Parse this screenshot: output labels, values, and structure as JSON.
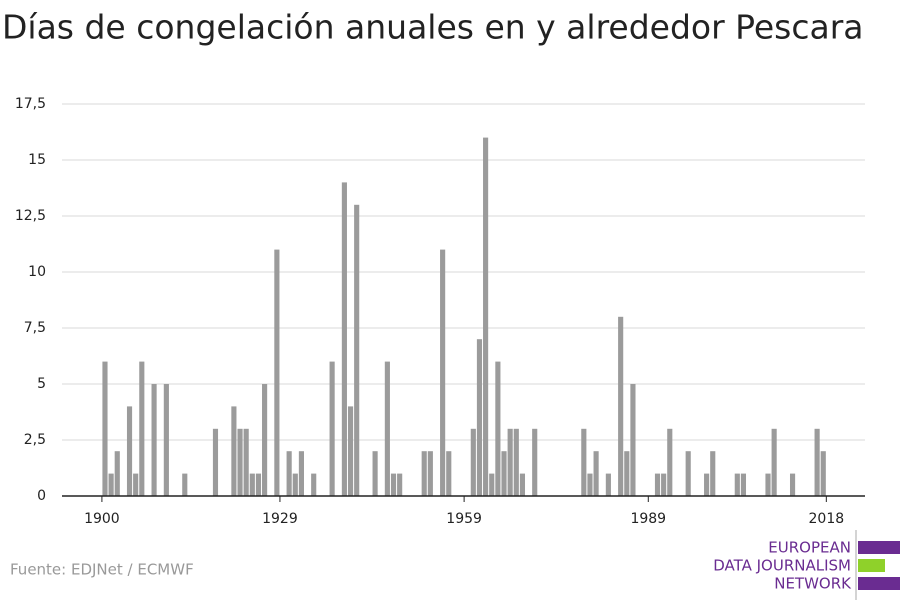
{
  "chart_data": {
    "type": "bar",
    "title": "Días de congelación anuales en y alrededor Pescara",
    "source": "Fuente: EDJNet / ECMWF",
    "logo": [
      "EUROPEAN",
      "DATA JOURNALISM",
      "NETWORK"
    ],
    "color": "#9b9b9b",
    "x": [
      1900,
      1901,
      1902,
      1904,
      1905,
      1906,
      1908,
      1910,
      1913,
      1918,
      1921,
      1922,
      1923,
      1924,
      1925,
      1926,
      1928,
      1930,
      1931,
      1932,
      1934,
      1937,
      1939,
      1940,
      1941,
      1944,
      1946,
      1947,
      1948,
      1952,
      1953,
      1955,
      1956,
      1960,
      1961,
      1962,
      1963,
      1964,
      1965,
      1966,
      1967,
      1968,
      1970,
      1978,
      1979,
      1980,
      1982,
      1984,
      1985,
      1986,
      1990,
      1991,
      1992,
      1995,
      1998,
      1999,
      2003,
      2004,
      2008,
      2009,
      2012,
      2016,
      2017
    ],
    "values": [
      6,
      1,
      2,
      4,
      1,
      6,
      5,
      5,
      1,
      3,
      4,
      3,
      3,
      1,
      1,
      5,
      11,
      2,
      1,
      2,
      1,
      6,
      14,
      4,
      13,
      2,
      6,
      1,
      1,
      2,
      2,
      11,
      2,
      3,
      7,
      16,
      1,
      6,
      2,
      3,
      3,
      1,
      3,
      3,
      1,
      2,
      1,
      8,
      2,
      5,
      1,
      1,
      3,
      2,
      1,
      2,
      1,
      1,
      1,
      3,
      1,
      3,
      2
    ],
    "xlim": [
      1893.5,
      2024.3
    ],
    "xticks": [
      1900,
      1929,
      1959,
      1989,
      2018
    ],
    "ylim": [
      0,
      17.5
    ],
    "yticks": [
      0,
      {
        "value": 2.5,
        "label": "2,5"
      },
      5,
      {
        "value": 7.5,
        "label": "7,5"
      },
      10,
      {
        "value": 12.5,
        "label": "12,5"
      },
      15,
      {
        "value": 17.5,
        "label": "17,5"
      }
    ],
    "grid": true
  }
}
